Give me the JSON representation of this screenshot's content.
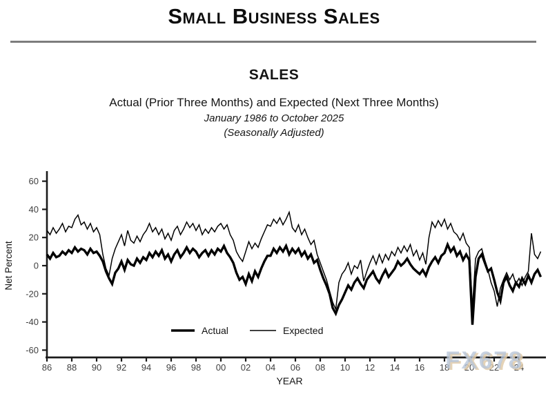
{
  "header": {
    "title": "Small Business Sales"
  },
  "chart_header": {
    "title": "SALES",
    "subtitle": "Actual (Prior Three Months) and Expected (Next Three Months)",
    "date_range": "January 1986 to October 2025",
    "note": "(Seasonally Adjusted)"
  },
  "watermark": "FX678",
  "chart_data": {
    "type": "line",
    "title": "SALES",
    "xlabel": "YEAR",
    "ylabel": "Net Percent",
    "xlim": [
      1986,
      2025.83
    ],
    "ylim": [
      -60,
      60
    ],
    "grid": false,
    "yticks": [
      -60,
      -40,
      -20,
      0,
      20,
      40,
      60
    ],
    "xticks": [
      {
        "year": 1986,
        "label": "86"
      },
      {
        "year": 1988,
        "label": "88"
      },
      {
        "year": 1990,
        "label": "90"
      },
      {
        "year": 1992,
        "label": "92"
      },
      {
        "year": 1994,
        "label": "94"
      },
      {
        "year": 1996,
        "label": "96"
      },
      {
        "year": 1998,
        "label": "98"
      },
      {
        "year": 2000,
        "label": "00"
      },
      {
        "year": 2002,
        "label": "02"
      },
      {
        "year": 2004,
        "label": "04"
      },
      {
        "year": 2006,
        "label": "06"
      },
      {
        "year": 2008,
        "label": "08"
      },
      {
        "year": 2010,
        "label": "10"
      },
      {
        "year": 2012,
        "label": "12"
      },
      {
        "year": 2014,
        "label": "14"
      },
      {
        "year": 2016,
        "label": "16"
      },
      {
        "year": 2018,
        "label": "18"
      },
      {
        "year": 2020,
        "label": "20"
      },
      {
        "year": 2022,
        "label": "22"
      },
      {
        "year": 2024,
        "label": "24"
      }
    ],
    "x_start": 1986.0,
    "x_step": 0.25,
    "colors": {
      "line": "#000000",
      "axis": "#1a1a1a",
      "tick_label": "#4a4a4a"
    },
    "legend": {
      "position": "bottom-center-inside",
      "labels": [
        "Actual",
        "Expected"
      ]
    },
    "series": [
      {
        "name": "Actual",
        "stroke_width": 3.4,
        "values": [
          8,
          5,
          9,
          6,
          7,
          10,
          8,
          11,
          9,
          13,
          10,
          12,
          11,
          8,
          12,
          9,
          10,
          7,
          3,
          -4,
          -9,
          -13,
          -5,
          -2,
          3,
          -3,
          4,
          1,
          0,
          5,
          2,
          6,
          4,
          9,
          6,
          10,
          7,
          11,
          5,
          8,
          3,
          8,
          11,
          6,
          9,
          13,
          9,
          12,
          10,
          6,
          9,
          11,
          7,
          11,
          8,
          12,
          10,
          14,
          9,
          6,
          2,
          -5,
          -10,
          -8,
          -13,
          -6,
          -11,
          -4,
          -8,
          -2,
          3,
          7,
          7,
          12,
          9,
          13,
          10,
          14,
          8,
          12,
          9,
          12,
          7,
          10,
          5,
          8,
          2,
          4,
          -3,
          -9,
          -14,
          -20,
          -30,
          -34,
          -28,
          -24,
          -19,
          -14,
          -17,
          -12,
          -9,
          -13,
          -16,
          -10,
          -7,
          -4,
          -9,
          -12,
          -7,
          -3,
          -8,
          -5,
          -2,
          3,
          0,
          2,
          5,
          1,
          -2,
          -4,
          -6,
          -3,
          -7,
          -1,
          3,
          6,
          2,
          7,
          9,
          15,
          10,
          13,
          7,
          10,
          4,
          8,
          4,
          -42,
          -8,
          5,
          8,
          2,
          -4,
          -2,
          -10,
          -19,
          -25,
          -12,
          -8,
          -14,
          -18,
          -12,
          -15,
          -9,
          -13,
          -7,
          -12,
          -6,
          -3,
          -8
        ]
      },
      {
        "name": "Expected",
        "stroke_width": 1.5,
        "values": [
          25,
          22,
          27,
          23,
          26,
          30,
          24,
          28,
          27,
          33,
          36,
          29,
          31,
          26,
          30,
          24,
          27,
          22,
          8,
          -2,
          -7,
          5,
          12,
          17,
          22,
          14,
          25,
          18,
          16,
          21,
          17,
          22,
          25,
          30,
          24,
          27,
          22,
          26,
          19,
          23,
          18,
          25,
          28,
          22,
          26,
          31,
          27,
          30,
          25,
          29,
          22,
          26,
          23,
          27,
          24,
          28,
          30,
          26,
          29,
          22,
          18,
          10,
          6,
          3,
          10,
          17,
          12,
          16,
          13,
          19,
          24,
          29,
          28,
          33,
          30,
          34,
          29,
          33,
          38,
          27,
          24,
          29,
          22,
          26,
          20,
          15,
          18,
          8,
          2,
          -4,
          -10,
          -18,
          -26,
          -31,
          -12,
          -6,
          -3,
          2,
          -6,
          0,
          -2,
          4,
          -11,
          -4,
          2,
          7,
          1,
          8,
          2,
          8,
          4,
          10,
          7,
          13,
          9,
          14,
          10,
          15,
          7,
          11,
          4,
          9,
          1,
          20,
          31,
          27,
          32,
          28,
          33,
          26,
          30,
          24,
          22,
          18,
          23,
          16,
          13,
          -30,
          5,
          10,
          12,
          4,
          -3,
          -12,
          -18,
          -29,
          -16,
          -10,
          -5,
          -10,
          -6,
          -13,
          -9,
          -14,
          -8,
          -4,
          23,
          8,
          5,
          10
        ]
      }
    ]
  }
}
